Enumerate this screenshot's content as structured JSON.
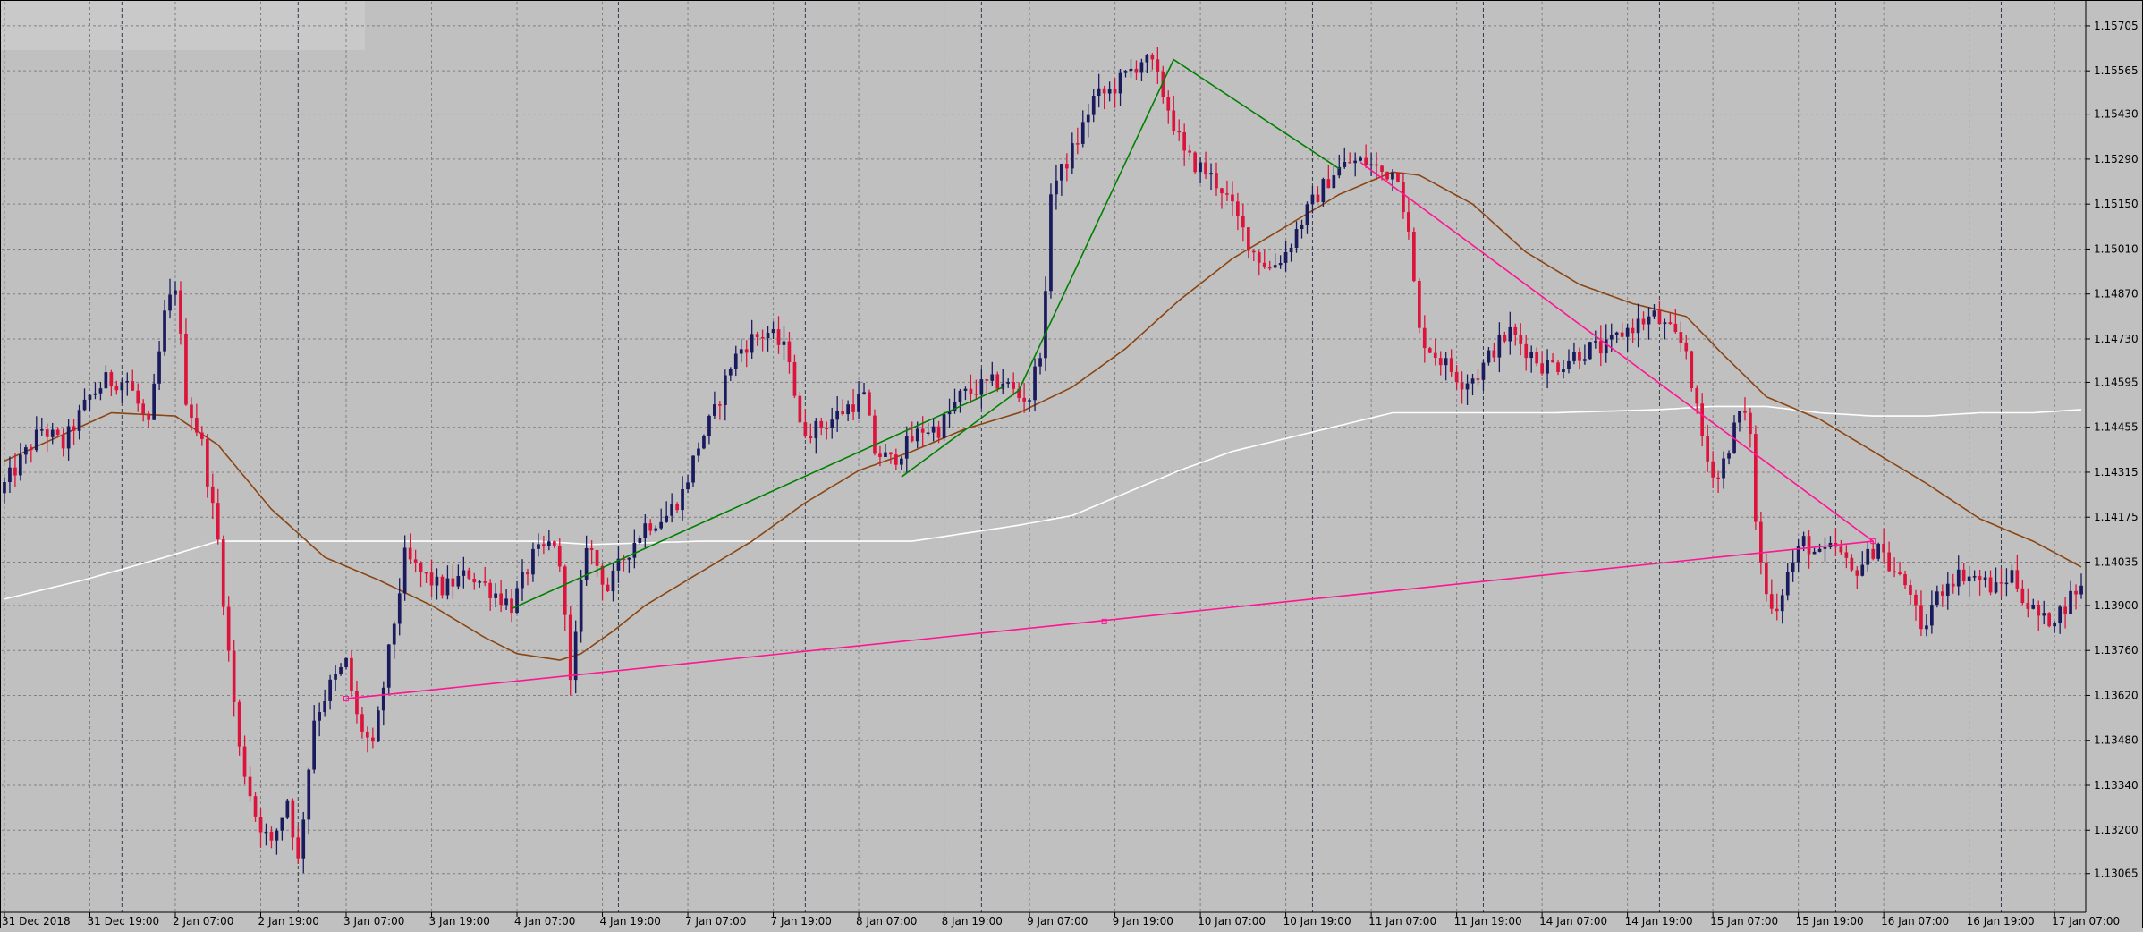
{
  "chart_data": {
    "type": "candlestick",
    "colors": {
      "background": "#c0c0c0",
      "grid": "#808080",
      "bull": "#1a1a5e",
      "bear": "#dc143c",
      "doji": "#ffffff",
      "ma_fast": "#8b4513",
      "ma_slow": "#ffffff",
      "trend_green": "#008000",
      "trend_pink": "#ff1493",
      "text": "#000000"
    },
    "ylim": [
      1.1295,
      1.1578
    ],
    "y_ticks": [
      "1.15705",
      "1.15565",
      "1.15430",
      "1.15290",
      "1.15150",
      "1.15010",
      "1.14870",
      "1.14730",
      "1.14595",
      "1.14455",
      "1.14315",
      "1.14175",
      "1.14035",
      "1.13900",
      "1.13760",
      "1.13620",
      "1.13480",
      "1.13340",
      "1.13200",
      "1.13065"
    ],
    "x_ticks": [
      {
        "label": "31 Dec 2018",
        "i": 0
      },
      {
        "label": "31 Dec 19:00",
        "i": 16
      },
      {
        "label": "2 Jan 07:00",
        "i": 32
      },
      {
        "label": "2 Jan 19:00",
        "i": 48
      },
      {
        "label": "3 Jan 07:00",
        "i": 64
      },
      {
        "label": "3 Jan 19:00",
        "i": 80
      },
      {
        "label": "4 Jan 07:00",
        "i": 96
      },
      {
        "label": "4 Jan 19:00",
        "i": 112
      },
      {
        "label": "7 Jan 07:00",
        "i": 128
      },
      {
        "label": "7 Jan 19:00",
        "i": 144
      },
      {
        "label": "8 Jan 07:00",
        "i": 160
      },
      {
        "label": "8 Jan 19:00",
        "i": 176
      },
      {
        "label": "9 Jan 07:00",
        "i": 192
      },
      {
        "label": "9 Jan 19:00",
        "i": 208
      },
      {
        "label": "10 Jan 07:00",
        "i": 224
      },
      {
        "label": "10 Jan 19:00",
        "i": 240
      },
      {
        "label": "11 Jan 07:00",
        "i": 256
      },
      {
        "label": "11 Jan 19:00",
        "i": 272
      },
      {
        "label": "14 Jan 07:00",
        "i": 288
      },
      {
        "label": "14 Jan 19:00",
        "i": 304
      },
      {
        "label": "15 Jan 07:00",
        "i": 320
      },
      {
        "label": "15 Jan 19:00",
        "i": 336
      },
      {
        "label": "16 Jan 07:00",
        "i": 352
      },
      {
        "label": "16 Jan 19:00",
        "i": 368
      },
      {
        "label": "17 Jan 07:00",
        "i": 384
      }
    ],
    "separators": [
      22,
      55,
      115,
      150,
      183,
      245,
      277,
      310,
      343,
      374
    ],
    "anchors": [
      [
        0,
        1.1425
      ],
      [
        4,
        1.1435
      ],
      [
        8,
        1.1445
      ],
      [
        12,
        1.144
      ],
      [
        17,
        1.1455
      ],
      [
        20,
        1.146
      ],
      [
        24,
        1.146
      ],
      [
        28,
        1.1445
      ],
      [
        31,
        1.148
      ],
      [
        33,
        1.149
      ],
      [
        35,
        1.1455
      ],
      [
        38,
        1.144
      ],
      [
        41,
        1.141
      ],
      [
        43,
        1.1375
      ],
      [
        45,
        1.1345
      ],
      [
        48,
        1.1325
      ],
      [
        51,
        1.1315
      ],
      [
        54,
        1.133
      ],
      [
        56,
        1.131
      ],
      [
        59,
        1.1355
      ],
      [
        62,
        1.1365
      ],
      [
        65,
        1.1372
      ],
      [
        67,
        1.1355
      ],
      [
        70,
        1.1345
      ],
      [
        73,
        1.1375
      ],
      [
        76,
        1.1405
      ],
      [
        79,
        1.14
      ],
      [
        83,
        1.1395
      ],
      [
        88,
        1.14
      ],
      [
        92,
        1.1395
      ],
      [
        96,
        1.139
      ],
      [
        100,
        1.1405
      ],
      [
        104,
        1.141
      ],
      [
        106,
        1.139
      ],
      [
        107,
        1.1365
      ],
      [
        110,
        1.141
      ],
      [
        114,
        1.1395
      ],
      [
        117,
        1.1405
      ],
      [
        121,
        1.1415
      ],
      [
        125,
        1.1418
      ],
      [
        128,
        1.1425
      ],
      [
        131,
        1.144
      ],
      [
        134,
        1.145
      ],
      [
        137,
        1.1465
      ],
      [
        139,
        1.147
      ],
      [
        141,
        1.1473
      ],
      [
        144,
        1.1475
      ],
      [
        148,
        1.1468
      ],
      [
        150,
        1.1445
      ],
      [
        153,
        1.1445
      ],
      [
        156,
        1.1448
      ],
      [
        159,
        1.1452
      ],
      [
        162,
        1.1455
      ],
      [
        164,
        1.1438
      ],
      [
        167,
        1.1435
      ],
      [
        170,
        1.144
      ],
      [
        173,
        1.1445
      ],
      [
        176,
        1.1445
      ],
      [
        180,
        1.1455
      ],
      [
        184,
        1.1458
      ],
      [
        188,
        1.146
      ],
      [
        191,
        1.1455
      ],
      [
        193,
        1.1455
      ],
      [
        195,
        1.147
      ],
      [
        196,
        1.1485
      ],
      [
        197,
        1.152
      ],
      [
        199,
        1.1525
      ],
      [
        202,
        1.1535
      ],
      [
        205,
        1.1548
      ],
      [
        208,
        1.155
      ],
      [
        211,
        1.1555
      ],
      [
        214,
        1.156
      ],
      [
        216,
        1.1558
      ],
      [
        219,
        1.1545
      ],
      [
        222,
        1.153
      ],
      [
        226,
        1.1525
      ],
      [
        229,
        1.152
      ],
      [
        232,
        1.151
      ],
      [
        235,
        1.15
      ],
      [
        238,
        1.1495
      ],
      [
        241,
        1.15
      ],
      [
        244,
        1.151
      ],
      [
        247,
        1.1518
      ],
      [
        250,
        1.1525
      ],
      [
        253,
        1.1528
      ],
      [
        256,
        1.1528
      ],
      [
        259,
        1.1525
      ],
      [
        262,
        1.1525
      ],
      [
        264,
        1.1505
      ],
      [
        266,
        1.1475
      ],
      [
        268,
        1.147
      ],
      [
        271,
        1.1465
      ],
      [
        274,
        1.146
      ],
      [
        277,
        1.1462
      ],
      [
        280,
        1.147
      ],
      [
        283,
        1.1475
      ],
      [
        286,
        1.147
      ],
      [
        289,
        1.1465
      ],
      [
        292,
        1.1465
      ],
      [
        295,
        1.1468
      ],
      [
        298,
        1.147
      ],
      [
        301,
        1.147
      ],
      [
        304,
        1.1475
      ],
      [
        307,
        1.1478
      ],
      [
        310,
        1.148
      ],
      [
        313,
        1.1475
      ],
      [
        316,
        1.147
      ],
      [
        318,
        1.145
      ],
      [
        320,
        1.1435
      ],
      [
        322,
        1.143
      ],
      [
        324,
        1.144
      ],
      [
        326,
        1.145
      ],
      [
        328,
        1.1445
      ],
      [
        329,
        1.1415
      ],
      [
        331,
        1.1393
      ],
      [
        333,
        1.139
      ],
      [
        335,
        1.14
      ],
      [
        338,
        1.141
      ],
      [
        341,
        1.1405
      ],
      [
        344,
        1.1408
      ],
      [
        347,
        1.14
      ],
      [
        350,
        1.1405
      ],
      [
        352,
        1.141
      ],
      [
        354,
        1.1402
      ],
      [
        356,
        1.1398
      ],
      [
        358,
        1.1395
      ],
      [
        360,
        1.138
      ],
      [
        362,
        1.139
      ],
      [
        365,
        1.1398
      ],
      [
        368,
        1.14
      ],
      [
        371,
        1.1398
      ],
      [
        374,
        1.1395
      ],
      [
        377,
        1.14
      ],
      [
        380,
        1.139
      ],
      [
        383,
        1.1385
      ],
      [
        386,
        1.1388
      ],
      [
        389,
        1.1395
      ]
    ],
    "ma_fast": [
      [
        0,
        1.1435
      ],
      [
        20,
        1.145
      ],
      [
        32,
        1.1449
      ],
      [
        40,
        1.144
      ],
      [
        50,
        1.142
      ],
      [
        60,
        1.1405
      ],
      [
        70,
        1.1398
      ],
      [
        80,
        1.139
      ],
      [
        90,
        1.138
      ],
      [
        96,
        1.1375
      ],
      [
        104,
        1.1373
      ],
      [
        108,
        1.1375
      ],
      [
        114,
        1.1382
      ],
      [
        120,
        1.139
      ],
      [
        130,
        1.14
      ],
      [
        140,
        1.141
      ],
      [
        150,
        1.1422
      ],
      [
        160,
        1.1432
      ],
      [
        170,
        1.1438
      ],
      [
        180,
        1.1445
      ],
      [
        190,
        1.145
      ],
      [
        200,
        1.1458
      ],
      [
        210,
        1.147
      ],
      [
        220,
        1.1485
      ],
      [
        230,
        1.1498
      ],
      [
        240,
        1.1508
      ],
      [
        250,
        1.1518
      ],
      [
        260,
        1.1525
      ],
      [
        265,
        1.1524
      ],
      [
        275,
        1.1515
      ],
      [
        285,
        1.15
      ],
      [
        295,
        1.149
      ],
      [
        305,
        1.1484
      ],
      [
        315,
        1.148
      ],
      [
        322,
        1.1468
      ],
      [
        330,
        1.1455
      ],
      [
        340,
        1.1448
      ],
      [
        350,
        1.1438
      ],
      [
        360,
        1.1428
      ],
      [
        370,
        1.1417
      ],
      [
        380,
        1.141
      ],
      [
        389,
        1.1402
      ]
    ],
    "ma_slow": [
      [
        0,
        1.1392
      ],
      [
        15,
        1.1398
      ],
      [
        30,
        1.1405
      ],
      [
        40,
        1.141
      ],
      [
        60,
        1.141
      ],
      [
        80,
        1.141
      ],
      [
        100,
        1.141
      ],
      [
        110,
        1.1409
      ],
      [
        130,
        1.141
      ],
      [
        150,
        1.141
      ],
      [
        170,
        1.141
      ],
      [
        190,
        1.1415
      ],
      [
        200,
        1.1418
      ],
      [
        210,
        1.1425
      ],
      [
        220,
        1.1432
      ],
      [
        230,
        1.1438
      ],
      [
        240,
        1.1442
      ],
      [
        255,
        1.1448
      ],
      [
        260,
        1.145
      ],
      [
        270,
        1.145
      ],
      [
        290,
        1.145
      ],
      [
        310,
        1.1451
      ],
      [
        320,
        1.1452
      ],
      [
        330,
        1.1452
      ],
      [
        340,
        1.145
      ],
      [
        350,
        1.1449
      ],
      [
        360,
        1.1449
      ],
      [
        370,
        1.145
      ],
      [
        380,
        1.145
      ],
      [
        389,
        1.1451
      ]
    ],
    "trendlines": [
      {
        "color": "trend_green",
        "points": [
          [
            95,
            1.1389
          ],
          [
            187,
            1.1458
          ]
        ]
      },
      {
        "color": "trend_green",
        "points": [
          [
            168,
            1.143
          ],
          [
            190,
            1.1457
          ],
          [
            219,
            1.156
          ],
          [
            250,
            1.1526
          ]
        ]
      },
      {
        "color": "trend_pink",
        "points": [
          [
            254,
            1.1528
          ],
          [
            350,
            1.141
          ]
        ]
      },
      {
        "color": "trend_pink",
        "points": [
          [
            64,
            1.1361
          ],
          [
            350,
            1.141
          ]
        ]
      }
    ],
    "trend_markers": [
      [
        206,
        1.1385
      ],
      [
        64,
        1.1361
      ],
      [
        350,
        1.141
      ]
    ]
  }
}
